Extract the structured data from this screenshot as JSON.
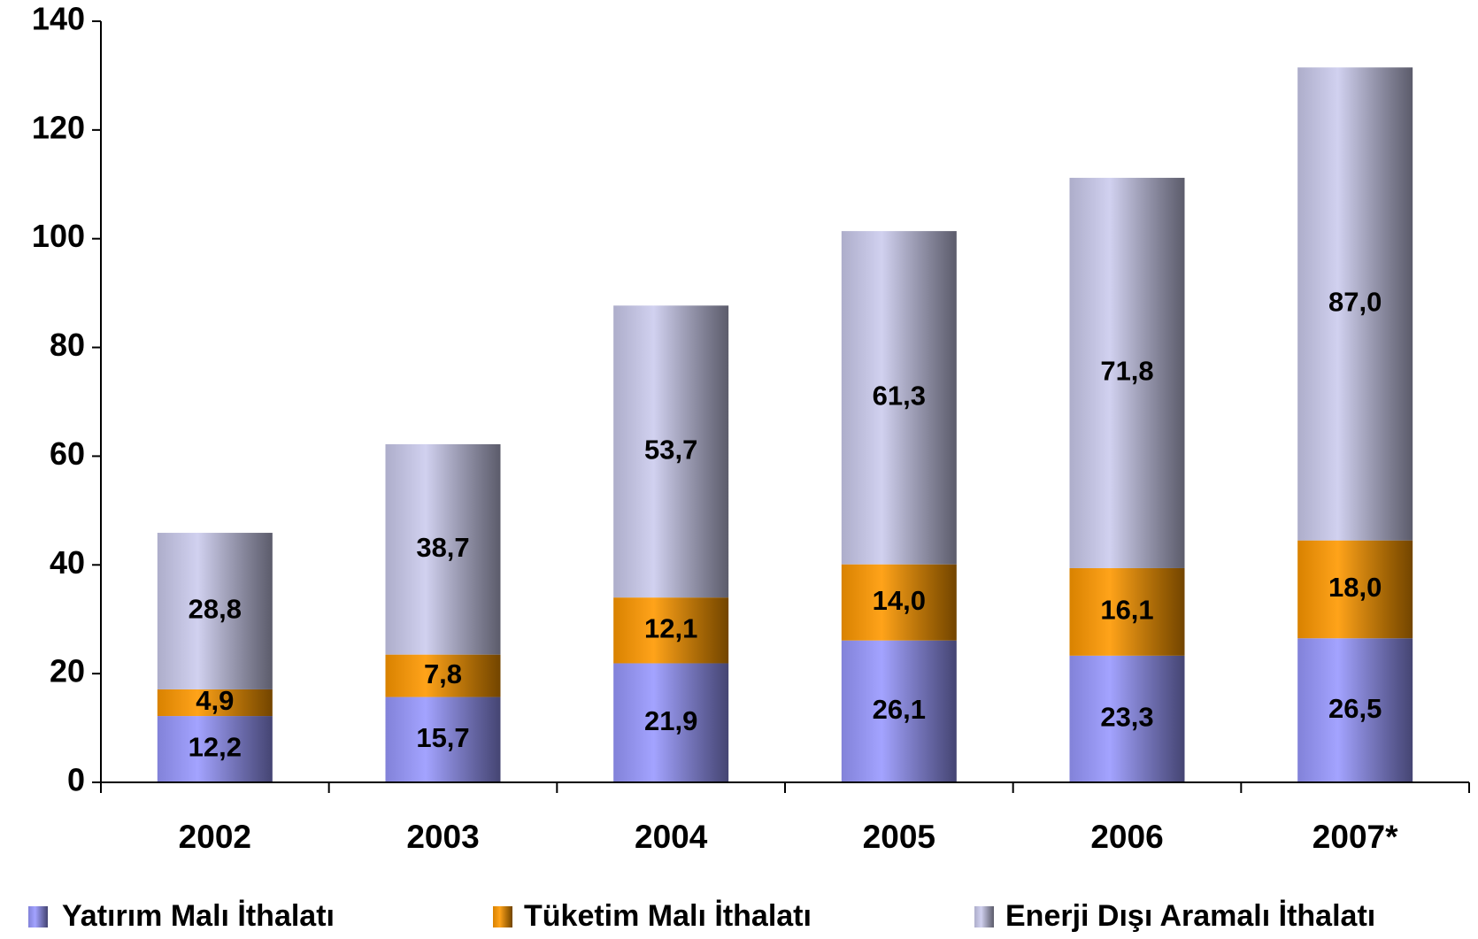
{
  "chart_data": {
    "type": "stacked_bar",
    "categories": [
      "2002",
      "2003",
      "2004",
      "2005",
      "2006",
      "2007*"
    ],
    "series": [
      {
        "name": "Yatırım Malı İthalatı",
        "color": "#9999ff",
        "values": [
          12.2,
          15.7,
          21.9,
          26.1,
          23.3,
          26.5
        ],
        "value_labels": [
          "12,2",
          "15,7",
          "21,9",
          "26,1",
          "23,3",
          "26,5"
        ]
      },
      {
        "name": "Tüketim Malı İthalatı",
        "color": "#ff9900",
        "values": [
          4.9,
          7.8,
          12.1,
          14.0,
          16.1,
          18.0
        ],
        "value_labels": [
          "4,9",
          "7,8",
          "12,1",
          "14,0",
          "16,1",
          "18,0"
        ]
      },
      {
        "name": "Enerji Dışı Aramalı İthalatı",
        "color": "#ccccee",
        "values": [
          28.8,
          38.7,
          53.7,
          61.3,
          71.8,
          87.0
        ],
        "value_labels": [
          "28,8",
          "38,7",
          "53,7",
          "61,3",
          "71,8",
          "87,0"
        ]
      }
    ],
    "ylim": [
      0,
      140
    ],
    "yticks": [
      0,
      20,
      40,
      60,
      80,
      100,
      120,
      140
    ],
    "grid": false,
    "legend": "bottom"
  }
}
